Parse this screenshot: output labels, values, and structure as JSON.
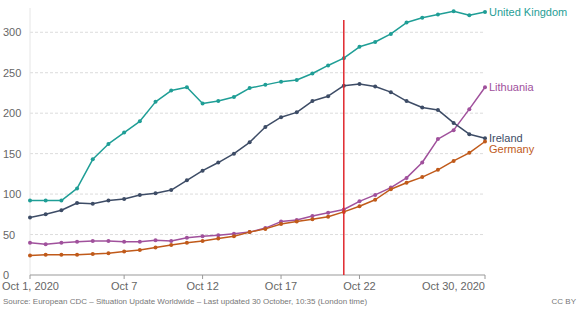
{
  "chart_data": {
    "type": "line",
    "x": [
      1,
      2,
      3,
      4,
      5,
      6,
      7,
      8,
      9,
      10,
      11,
      12,
      13,
      14,
      15,
      16,
      17,
      18,
      19,
      20,
      21,
      22,
      23,
      24,
      25,
      26,
      27,
      28,
      29,
      30
    ],
    "xlim": [
      1,
      30
    ],
    "xticks": [
      {
        "value": 1,
        "label": "Oct 1, 2020"
      },
      {
        "value": 7,
        "label": "Oct 7"
      },
      {
        "value": 12,
        "label": "Oct 12"
      },
      {
        "value": 17,
        "label": "Oct 17"
      },
      {
        "value": 22,
        "label": "Oct 22"
      },
      {
        "value": 30,
        "label": "Oct 30, 2020"
      }
    ],
    "ylim": [
      0,
      330
    ],
    "yticks": [
      0,
      50,
      100,
      150,
      200,
      250,
      300
    ],
    "grid": true,
    "marker": "circle",
    "series": [
      {
        "name": "United Kingdom",
        "color": "#1f9e96",
        "values": [
          92,
          92,
          92,
          107,
          143,
          162,
          176,
          190,
          214,
          228,
          232,
          212,
          215,
          220,
          231,
          235,
          239,
          241,
          249,
          259,
          268,
          282,
          288,
          298,
          312,
          318,
          322,
          326,
          321,
          325
        ]
      },
      {
        "name": "Lithuania",
        "color": "#a0519c",
        "values": [
          40,
          38,
          40,
          41,
          42,
          42,
          41,
          41,
          43,
          42,
          46,
          48,
          49,
          51,
          53,
          58,
          66,
          68,
          73,
          77,
          81,
          91,
          99,
          108,
          120,
          139,
          168,
          179,
          205,
          232
        ]
      },
      {
        "name": "Ireland",
        "color": "#3d4c66",
        "values": [
          71,
          75,
          80,
          89,
          88,
          92,
          94,
          99,
          101,
          105,
          117,
          129,
          139,
          150,
          164,
          183,
          195,
          201,
          215,
          221,
          234,
          236,
          233,
          226,
          215,
          207,
          204,
          188,
          174,
          169
        ]
      },
      {
        "name": "Germany",
        "color": "#c05a1a",
        "values": [
          24,
          25,
          25,
          25,
          26,
          27,
          29,
          31,
          34,
          37,
          40,
          42,
          45,
          48,
          53,
          57,
          63,
          66,
          69,
          72,
          78,
          85,
          93,
          106,
          114,
          121,
          130,
          141,
          151,
          165
        ]
      }
    ],
    "reference_line": {
      "x": 21,
      "color": "#e0282e"
    },
    "source": "Source: European CDC – Situation Update Worldwide – Last updated 30 October, 10:35 (London time)",
    "license": "CC BY"
  }
}
